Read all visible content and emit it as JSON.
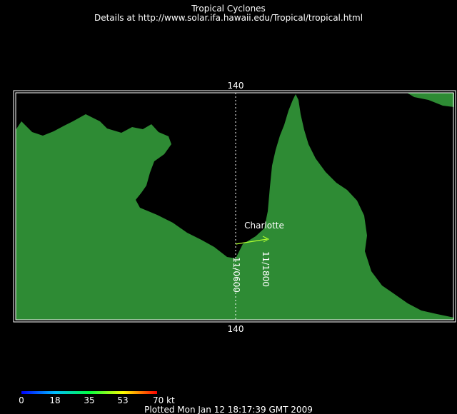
{
  "header": {
    "title": "Tropical Cyclones",
    "subtitle": "Details at http://www.solar.ifa.hawaii.edu/Tropical/tropical.html"
  },
  "map": {
    "meridian_labels": [
      "140",
      "140"
    ]
  },
  "storm": {
    "name": "Charlotte",
    "time_labels": [
      "11/0600",
      "11/1800"
    ]
  },
  "legend": {
    "labels": [
      "0",
      "18",
      "35",
      "53",
      "70 kt"
    ]
  },
  "footer": "Plotted Mon Jan 12 18:17:39 GMT 2009"
}
